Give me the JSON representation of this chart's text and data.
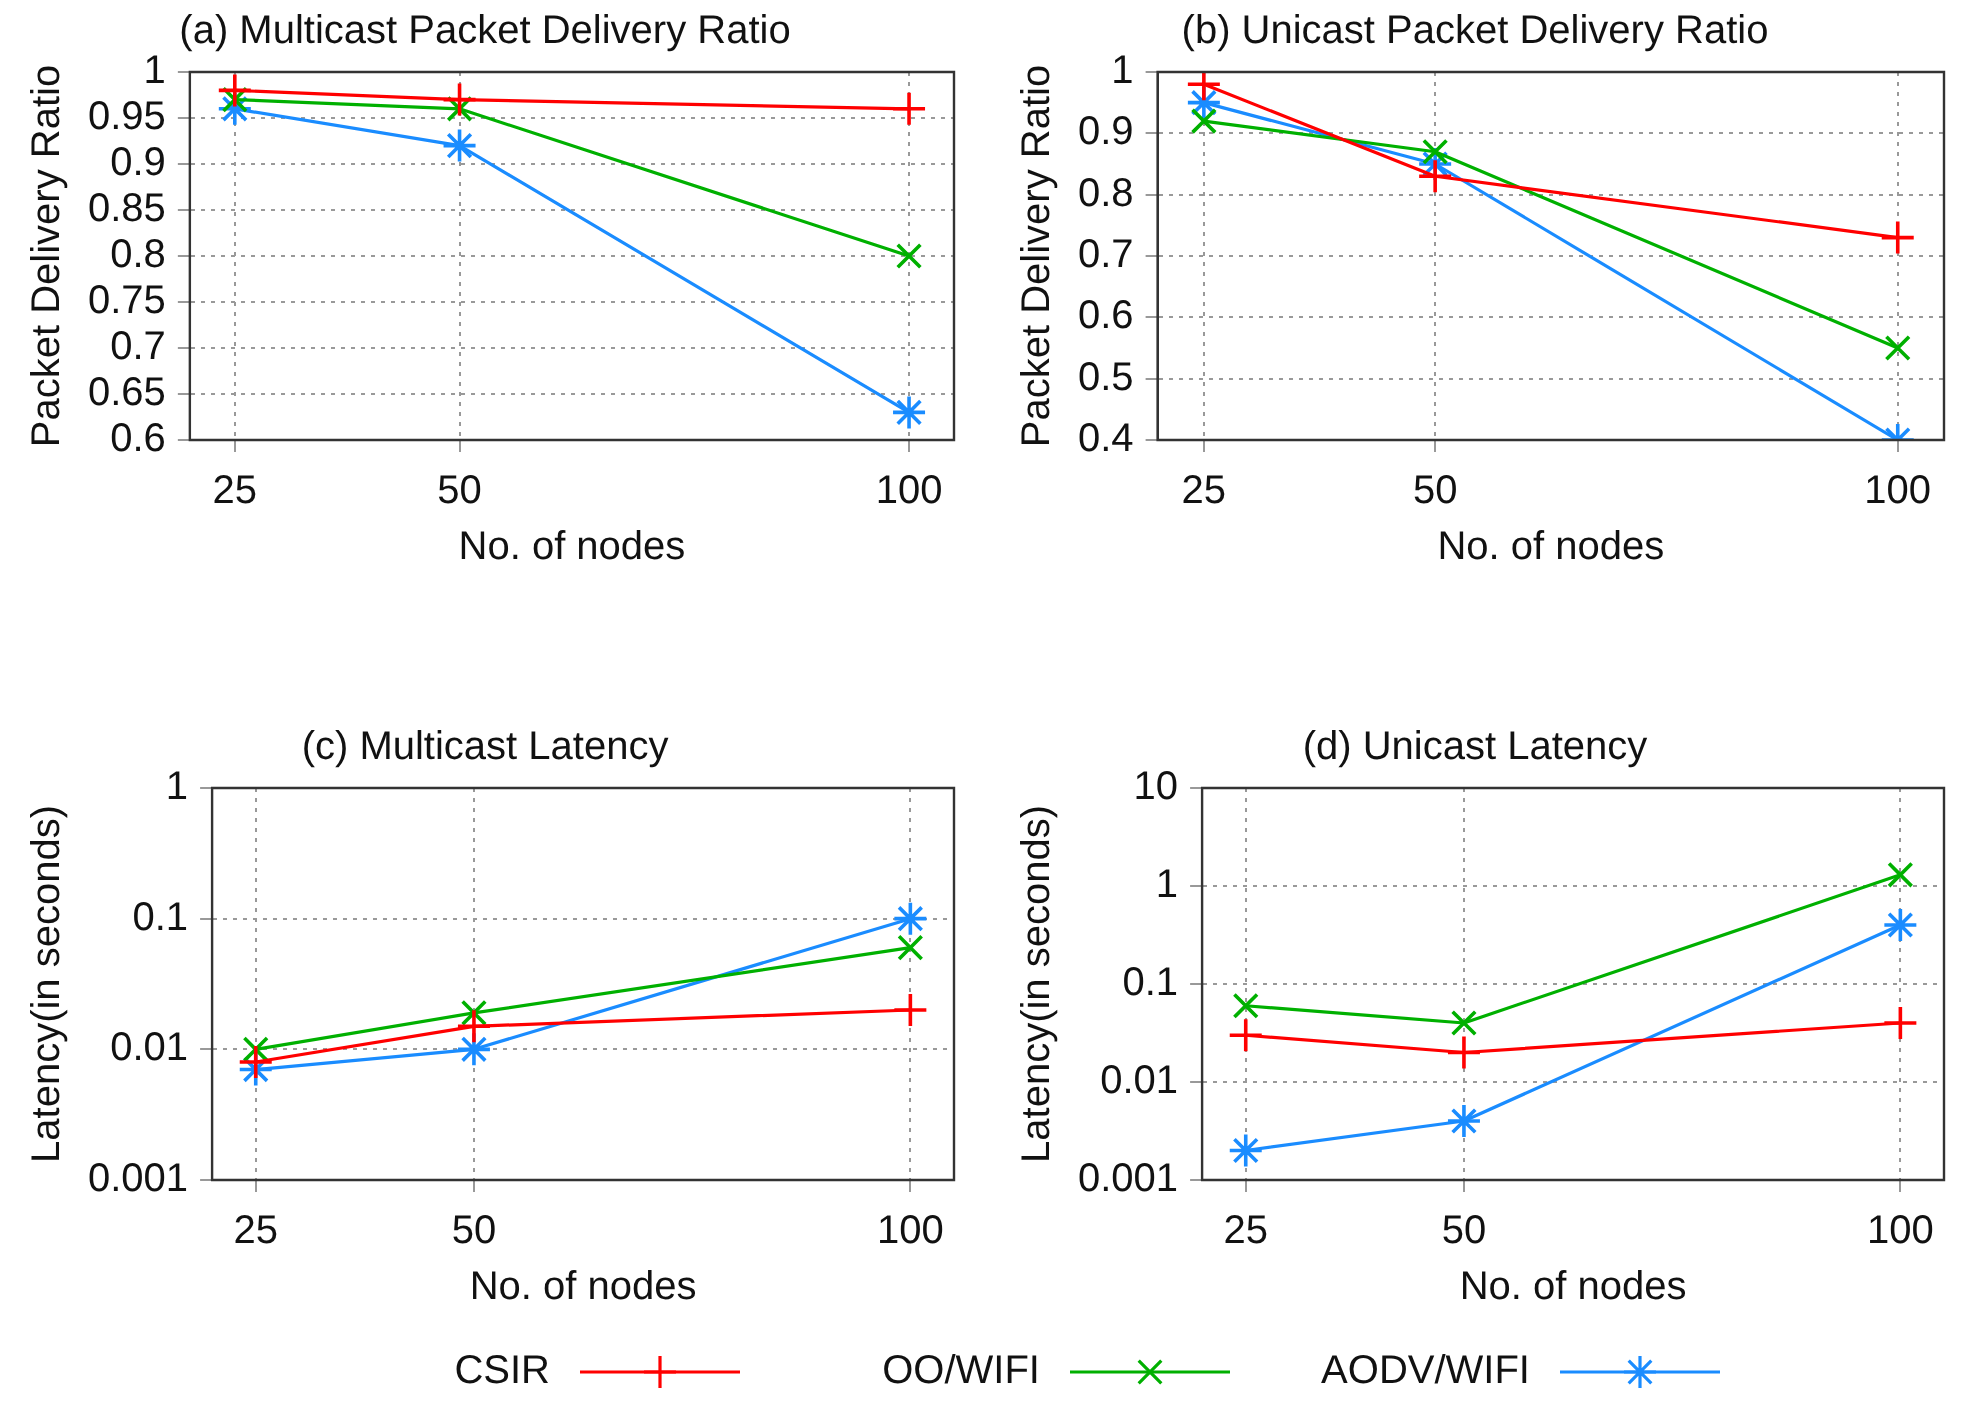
{
  "chart_data": [
    {
      "type": "line",
      "title": "(a) Multicast Packet Delivery Ratio",
      "xlabel": "No. of nodes",
      "ylabel": "Packet Delivery Ratio",
      "x": [
        25,
        50,
        100
      ],
      "xlim": [
        20,
        105
      ],
      "xticks": [
        25,
        50,
        100
      ],
      "ylim": [
        0.6,
        1
      ],
      "yticks": [
        0.6,
        0.65,
        0.7,
        0.75,
        0.8,
        0.85,
        0.9,
        0.95,
        1
      ],
      "grid": true,
      "marker": "cross",
      "legend": "bottom",
      "series": [
        {
          "name": "CSIR",
          "color": "#ff0000",
          "values": [
            0.98,
            0.97,
            0.96
          ]
        },
        {
          "name": "OO/WIFI",
          "color": "#00b000",
          "values": [
            0.97,
            0.96,
            0.8
          ]
        },
        {
          "name": "AODV/WIFI",
          "color": "#1a8cff",
          "values": [
            0.96,
            0.92,
            0.63
          ]
        }
      ]
    },
    {
      "type": "line",
      "title": "(b) Unicast Packet Delivery Ratio",
      "xlabel": "No. of nodes",
      "ylabel": "Packet Delivery Ratio",
      "x": [
        25,
        50,
        100
      ],
      "xlim": [
        20,
        105
      ],
      "xticks": [
        25,
        50,
        100
      ],
      "ylim": [
        0.4,
        1
      ],
      "yticks": [
        0.4,
        0.5,
        0.6,
        0.7,
        0.8,
        0.9,
        1
      ],
      "grid": true,
      "marker": "cross",
      "series": [
        {
          "color": "#ff0000",
          "values": [
            0.98,
            0.83,
            0.73
          ]
        },
        {
          "color": "#00b000",
          "values": [
            0.92,
            0.87,
            0.55
          ]
        },
        {
          "color": "#1a8cff",
          "values": [
            0.95,
            0.85,
            0.4
          ]
        }
      ]
    },
    {
      "type": "line",
      "title": "(c) Multicast Latency",
      "xlabel": "No. of nodes",
      "ylabel": "Latency(in seconds)",
      "x": [
        25,
        50,
        100
      ],
      "xlim": [
        20,
        105
      ],
      "xticks": [
        25,
        50,
        100
      ],
      "ylim": [
        0.001,
        1
      ],
      "yticks": [
        0.001,
        0.01,
        0.1,
        1
      ],
      "log": "y",
      "grid": true,
      "marker": "cross",
      "series": [
        {
          "color": "#ff0000",
          "values": [
            0.008,
            0.015,
            0.02
          ]
        },
        {
          "color": "#00b000",
          "values": [
            0.01,
            0.019,
            0.06
          ]
        },
        {
          "color": "#1a8cff",
          "values": [
            0.007,
            0.01,
            0.1
          ]
        }
      ]
    },
    {
      "type": "line",
      "title": "(d) Unicast Latency",
      "xlabel": "No. of nodes",
      "ylabel": "Latency(in seconds)",
      "x": [
        25,
        50,
        100
      ],
      "xlim": [
        20,
        105
      ],
      "xticks": [
        25,
        50,
        100
      ],
      "ylim": [
        0.001,
        10
      ],
      "yticks": [
        0.001,
        0.01,
        0.1,
        1,
        10
      ],
      "log": "y",
      "grid": true,
      "marker": "cross",
      "series": [
        {
          "color": "#ff0000",
          "values": [
            0.03,
            0.02,
            0.04
          ]
        },
        {
          "color": "#00b000",
          "values": [
            0.06,
            0.04,
            1.3
          ]
        },
        {
          "color": "#1a8cff",
          "values": [
            0.002,
            0.004,
            0.4
          ]
        }
      ]
    }
  ]
}
